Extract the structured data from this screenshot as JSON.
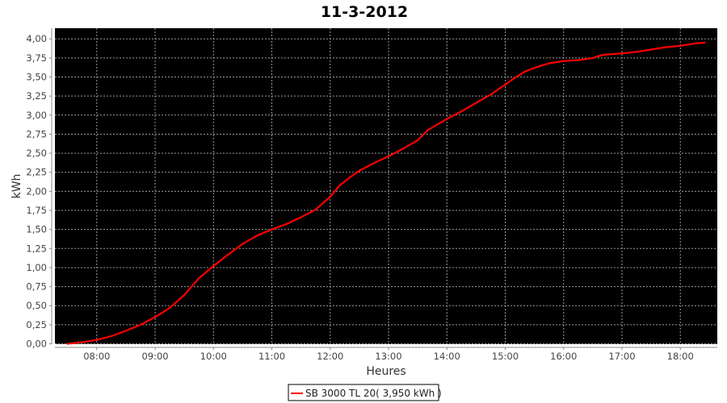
{
  "chart_data": {
    "type": "line",
    "title": "11-3-2012",
    "xlabel": "Heures",
    "ylabel": "kWh",
    "xlim": [
      "07:17",
      "18:38"
    ],
    "ylim": [
      0,
      4.14
    ],
    "x_ticks": [
      "08:00",
      "09:00",
      "10:00",
      "11:00",
      "12:00",
      "13:00",
      "14:00",
      "15:00",
      "16:00",
      "17:00",
      "18:00"
    ],
    "y_ticks": [
      "0,00",
      "0,25",
      "0,50",
      "0,75",
      "1,00",
      "1,25",
      "1,50",
      "1,75",
      "2,00",
      "2,25",
      "2,50",
      "2,75",
      "3,00",
      "3,25",
      "3,50",
      "3,75",
      "4,00"
    ],
    "grid": true,
    "background": "#000000",
    "grid_color": "#9a9a9a",
    "legend": {
      "position": "bottom",
      "label": "SB 3000 TL 20( 3,950 kWh )"
    },
    "series": [
      {
        "name": "SB 3000 TL 20( 3,950 kWh )",
        "color": "#ff0000",
        "x": [
          "07:30",
          "07:45",
          "08:00",
          "08:15",
          "08:30",
          "08:45",
          "09:00",
          "09:15",
          "09:30",
          "09:45",
          "10:00",
          "10:15",
          "10:30",
          "10:45",
          "11:00",
          "11:15",
          "11:30",
          "11:45",
          "12:00",
          "12:10",
          "12:20",
          "12:30",
          "12:45",
          "13:00",
          "13:15",
          "13:30",
          "13:40",
          "14:00",
          "14:15",
          "14:30",
          "14:45",
          "15:00",
          "15:10",
          "15:20",
          "15:30",
          "15:45",
          "16:00",
          "16:15",
          "16:30",
          "16:40",
          "17:00",
          "17:15",
          "17:30",
          "17:45",
          "18:00",
          "18:15",
          "18:25"
        ],
        "y": [
          0.0,
          0.02,
          0.05,
          0.1,
          0.17,
          0.25,
          0.35,
          0.47,
          0.64,
          0.86,
          1.02,
          1.17,
          1.31,
          1.42,
          1.5,
          1.57,
          1.66,
          1.76,
          1.93,
          2.08,
          2.18,
          2.27,
          2.37,
          2.46,
          2.56,
          2.67,
          2.8,
          2.95,
          3.05,
          3.16,
          3.27,
          3.4,
          3.49,
          3.57,
          3.62,
          3.68,
          3.71,
          3.72,
          3.75,
          3.79,
          3.81,
          3.83,
          3.86,
          3.89,
          3.91,
          3.94,
          3.95
        ]
      }
    ]
  }
}
